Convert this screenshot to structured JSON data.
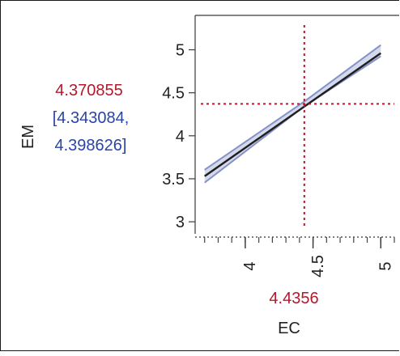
{
  "chart_data": {
    "type": "line",
    "xlabel": "EC",
    "ylabel": "EM",
    "xlim": [
      3.63,
      5.1
    ],
    "ylim": [
      2.86,
      5.4
    ],
    "xticks": [
      4,
      4.5,
      5
    ],
    "yticks": [
      3,
      3.5,
      4,
      4.5,
      5
    ],
    "x_tick_labels": [
      "4",
      "4.5",
      "5"
    ],
    "y_tick_labels": [
      "3",
      "3.5",
      "4",
      "4.5",
      "5"
    ],
    "grid": false,
    "series": [
      {
        "x": [
          3.7,
          5.0
        ],
        "y": [
          3.53,
          4.96
        ]
      }
    ],
    "confidence_band": {
      "x": [
        3.7,
        4.4356,
        5.0
      ],
      "lower": [
        3.455,
        4.343084,
        4.925
      ],
      "upper": [
        3.605,
        4.398626,
        5.055
      ]
    },
    "crosshair": {
      "x": 4.4356,
      "y": 4.370855
    },
    "readout": {
      "x_value": "4.4356",
      "y_value": "4.370855",
      "ci_line1": "[4.343084,",
      "ci_line2": "4.398626]"
    },
    "colors": {
      "fit_line": "#1f1f1f",
      "band": "#8592c8",
      "crosshair": "#b5182b",
      "readout_value": "#b5182b",
      "readout_ci": "#2a43a8",
      "text": "#222222"
    }
  }
}
